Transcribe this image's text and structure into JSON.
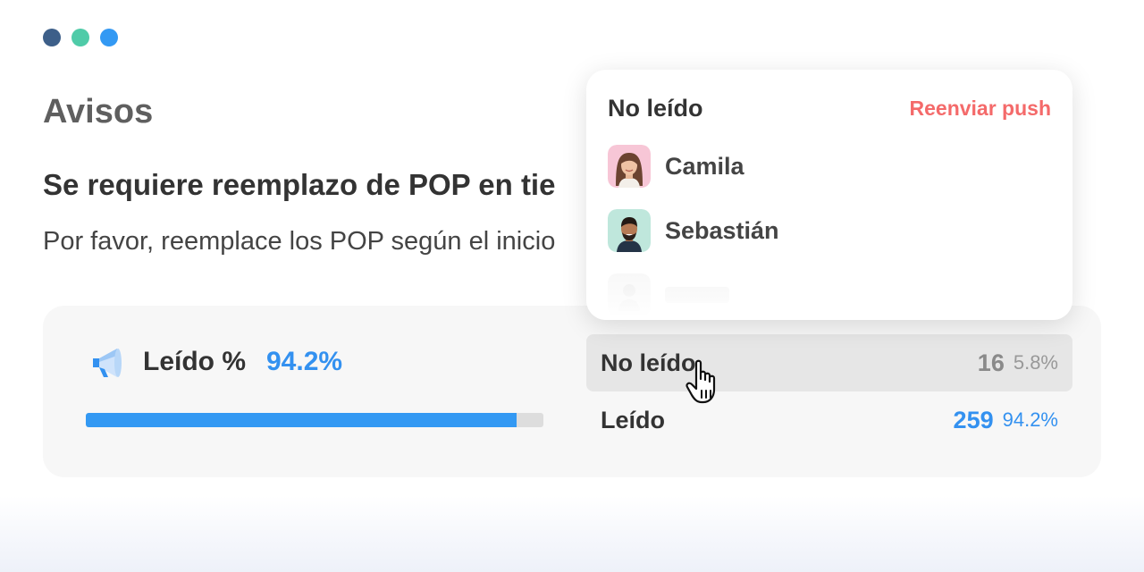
{
  "window": {
    "dot_colors": [
      "#3d5f89",
      "#4fcba8",
      "#3399f3"
    ]
  },
  "page": {
    "title": "Avisos"
  },
  "notice": {
    "title": "Se requiere reemplazo de POP en tie",
    "body": "Por favor, reemplace los POP según el inicio"
  },
  "stats": {
    "icon": "megaphone-icon",
    "read_label": "Leído %",
    "read_percent_label": "94.2%",
    "progress_fraction": 0.942,
    "rows": [
      {
        "label": "No leído",
        "count": "16",
        "percent": "5.8%"
      },
      {
        "label": "Leído",
        "count": "259",
        "percent": "94.2%"
      }
    ]
  },
  "popover": {
    "title": "No leído",
    "action": "Reenviar push",
    "users": [
      {
        "name": "Camila",
        "avatar": "female-avatar"
      },
      {
        "name": "Sebastián",
        "avatar": "male-avatar"
      },
      {
        "name": "",
        "avatar": "placeholder-avatar"
      }
    ]
  },
  "cursor": {
    "icon": "hand-pointer-icon"
  },
  "colors": {
    "accent_blue": "#3391f0",
    "action_red": "#f46a6a",
    "muted_gray": "#8a8a8a"
  }
}
